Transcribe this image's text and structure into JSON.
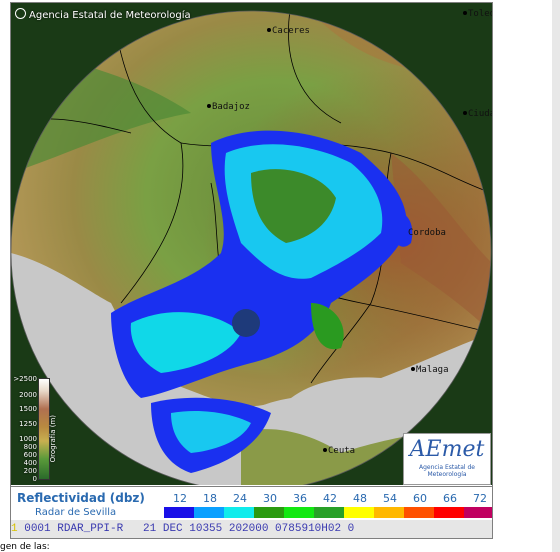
{
  "credit": "Agencia Estatal de Meteorología",
  "cities": [
    {
      "name": "Caceres"
    },
    {
      "name": "Badajoz"
    },
    {
      "name": "Malaga"
    },
    {
      "name": "Ceuta"
    },
    {
      "name": "Cordoba"
    },
    {
      "name": "Ciudad Real"
    },
    {
      "name": "Toledo"
    }
  ],
  "orography": {
    "axis_label": "Orografía (m)",
    "levels": [
      ">2500",
      "2000",
      "1500",
      "1250",
      "1000",
      "800",
      "600",
      "400",
      "200",
      "0"
    ]
  },
  "logo": {
    "word": "AEmet",
    "subtitle": "Agencia Estatal de Meteorología"
  },
  "legend": {
    "title": "Reflectividad (dbz)",
    "subtitle": "Radar de Sevilla",
    "values": [
      "12",
      "18",
      "24",
      "30",
      "36",
      "42",
      "48",
      "54",
      "60",
      "66",
      "72"
    ],
    "colors": [
      "#1a10e8",
      "#0aa0ff",
      "#10ecec",
      "#2a9a10",
      "#12e812",
      "#28a028",
      "#ffff00",
      "#ffb800",
      "#ff5000",
      "#ff0000",
      "#c00060"
    ]
  },
  "status": {
    "line": "0001 RDAR_PPI-R   21 DEC 10355 202000 0785910H02 0",
    "lead": "1",
    "tail_highlight": "1"
  },
  "below_text": "gen de las:"
}
